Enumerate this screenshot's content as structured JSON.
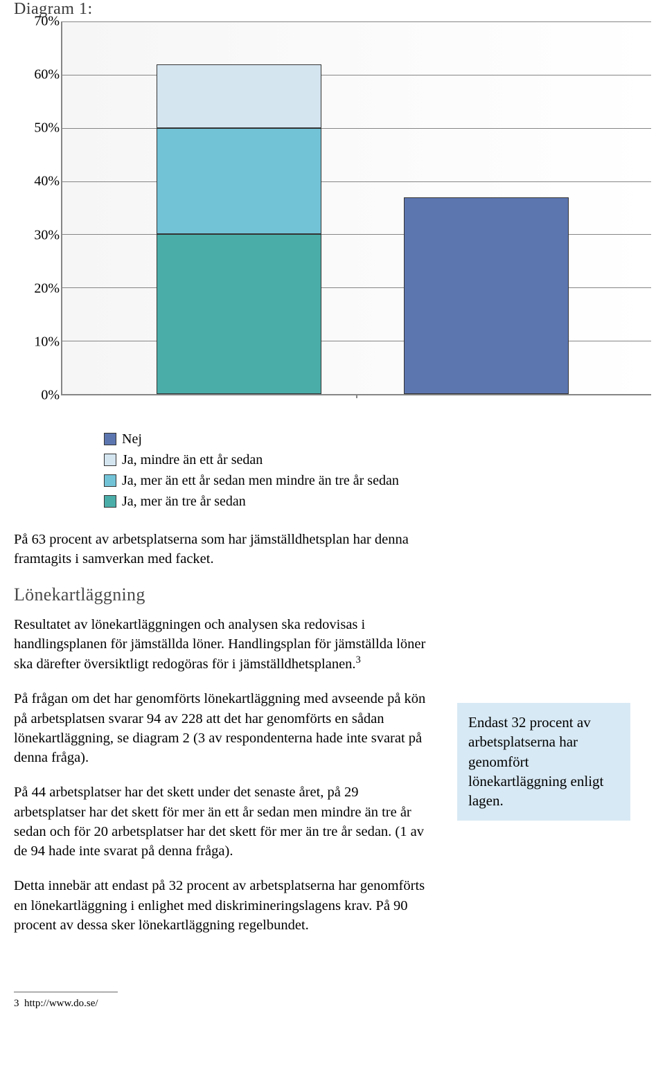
{
  "diagram": {
    "title": "Diagram 1:",
    "chart": {
      "type": "stacked-bar",
      "ylim": [
        0,
        70
      ],
      "ytick_step": 10,
      "ytick_suffix": "%",
      "background_gradient": [
        "#f6f6f6",
        "#ffffff"
      ],
      "axis_color": "#858585",
      "grid_color": "#858585",
      "bar_width_pct": 28,
      "bar_positions_pct": [
        30,
        72
      ],
      "series": [
        {
          "label": "Nej",
          "color": "#5c76b0"
        },
        {
          "label": "Ja, mindre än ett år sedan",
          "color": "#d4e5f0"
        },
        {
          "label": "Ja, mer än ett år sedan men mindre än tre år sedan",
          "color": "#73c3d7"
        },
        {
          "label": "Ja, mer än tre år sedan",
          "color": "#4bada8"
        }
      ],
      "bars": [
        {
          "segments": [
            {
              "series": 3,
              "value": 30
            },
            {
              "series": 2,
              "value": 20
            },
            {
              "series": 1,
              "value": 12
            }
          ]
        },
        {
          "segments": [
            {
              "series": 0,
              "value": 37
            }
          ]
        }
      ],
      "yticks": [
        "0%",
        "10%",
        "20%",
        "30%",
        "40%",
        "50%",
        "60%",
        "70%"
      ]
    }
  },
  "body": {
    "p1": "På 63 procent av arbetsplatserna som har jämställdhetsplan har denna framtagits i samverkan med facket.",
    "h2": "Lönekartläggning",
    "p2_a": "Resultatet av lönekartläggningen och analysen ska redovisas i handlingsplanen för jämställda löner. Handlingsplan för jämställda löner ska därefter översiktligt redogöras för i jämställdhetsplanen.",
    "p2_sup": "3",
    "p3": "På frågan om det har genomförts lönekartläggning med avseende på kön på arbetsplatsen svarar 94 av 228 att det har genomförts en sådan lönekartläggning, se diagram 2 (3 av respondenterna hade inte svarat på denna fråga).",
    "p4": "På 44 arbetsplatser har det skett under det senaste året, på 29 arbetsplatser har det skett för mer än ett år sedan men mindre än tre år sedan och för 20 arbetsplatser har det skett för mer än tre år sedan. (1 av de 94 hade inte svarat på denna fråga).",
    "p5": "Detta innebär att endast på 32 procent av arbetsplatserna har genomförts en lönekartläggning i enlighet med diskrimineringslagens krav. På 90 procent av dessa sker lönekartläggning regelbundet."
  },
  "callout": {
    "text": "Endast 32 procent av arbetsplatserna har genomfört lönekartläggning enligt lagen.",
    "background": "#d7e9f4"
  },
  "footnote": {
    "num": "3",
    "text": "http://www.do.se/"
  }
}
